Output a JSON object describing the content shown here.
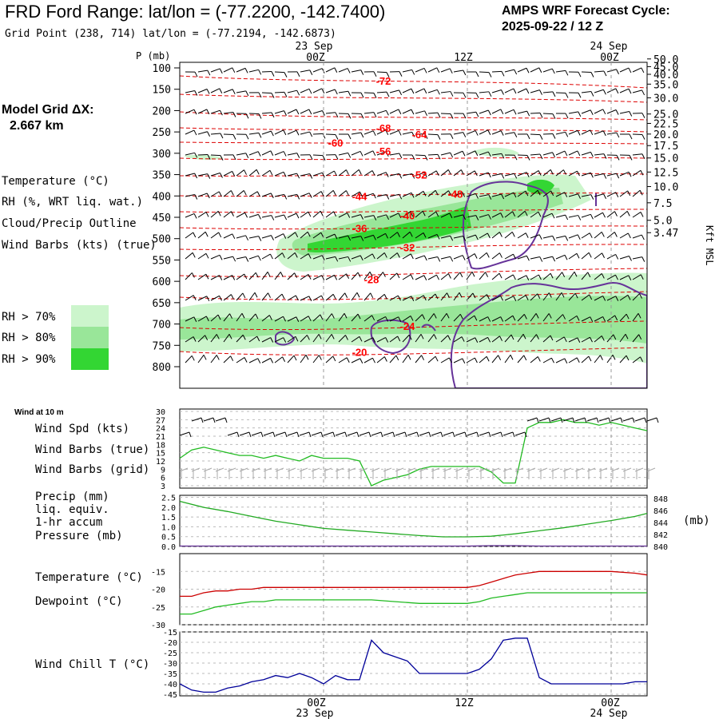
{
  "header": {
    "title": "FRD Ford Range:  lat/lon = (-77.2200, -142.7400)",
    "subtitle": "Grid Point (238, 714) lat/lon = (-77.2194, -142.6873)",
    "cycle_line1": "AMPS WRF Forecast Cycle:",
    "cycle_line2": "2025-09-22 / 12  Z",
    "model_grid_label": "Model Grid ΔX:",
    "model_grid_value": "2.667 km"
  },
  "time_axis": {
    "top_dates": [
      "23 Sep",
      "24 Sep"
    ],
    "labels": [
      "00Z",
      "12Z",
      "00Z"
    ],
    "bottom_dates": [
      "23 Sep",
      "24 Sep"
    ]
  },
  "colors": {
    "temperature": "#ff0000",
    "rh": "#00aa00",
    "cloud": "#663399",
    "wind": "#000000",
    "wind_grid": "#aaaaaa",
    "precip": "#663399",
    "pressure": "#22aa22",
    "temp_line": "#cc0000",
    "dewpoint": "#22bb22",
    "windchill": "#000099",
    "rh70": "#ccf5cc",
    "rh80": "#99e699",
    "rh90": "#33d633"
  },
  "upper_panel": {
    "p_axis_title": "P (mb)",
    "right_axis_title": "Kft MSL",
    "legend": {
      "temperature": "Temperature (°C)",
      "rh": "RH (%, WRT liq. wat.)",
      "cloud": "Cloud/Precip Outline",
      "wind": "Wind Barbs (kts) (true)",
      "rh70": "RH > 70%",
      "rh80": "RH > 80%",
      "rh90": "RH > 90%"
    }
  },
  "lower_panels": {
    "wind_title": "Wind at 10 m",
    "wind_spd": "Wind Spd (kts)",
    "wind_barbs_true": "Wind Barbs (true)",
    "wind_barbs_grid": "Wind Barbs (grid)",
    "precip_l1": "Precip (mm)",
    "precip_l2": "liq. equiv.",
    "precip_l3": "1-hr accum",
    "pressure": "Pressure (mb)",
    "pressure_unit": "(mb)",
    "temperature": "Temperature (°C)",
    "dewpoint": "Dewpoint (°C)",
    "windchill": "Wind Chill T (°C)"
  },
  "chart_data": [
    {
      "type": "heatmap",
      "name": "upper-air-time-height",
      "y_left_label": "P (mb)",
      "y_left_ticks": [
        100,
        150,
        200,
        250,
        300,
        350,
        400,
        450,
        500,
        550,
        600,
        650,
        700,
        750,
        800
      ],
      "y_right_label": "Kft MSL",
      "y_right_ticks": [
        "50.0",
        "45.0",
        "40.0",
        "35.0",
        "30.0",
        "25.0",
        "22.5",
        "20.0",
        "17.5",
        "15.0",
        "12.5",
        "10.0",
        "7.5",
        "5.0",
        "3.47"
      ],
      "y_right_pressures": [
        79,
        97,
        115,
        138,
        170,
        208,
        230,
        255,
        282,
        311,
        344,
        378,
        416,
        457,
        486
      ],
      "temperature_labels": [
        {
          "text": "-72",
          "hour": 5,
          "p": 130
        },
        {
          "text": "-68",
          "hour": 5,
          "p": 240
        },
        {
          "text": "-64",
          "hour": 8,
          "p": 255
        },
        {
          "text": "-60",
          "hour": 1,
          "p": 275
        },
        {
          "text": "-56",
          "hour": 5,
          "p": 295
        },
        {
          "text": "-52",
          "hour": 8,
          "p": 350
        },
        {
          "text": "-48",
          "hour": 11,
          "p": 395
        },
        {
          "text": "-44",
          "hour": 3,
          "p": 400
        },
        {
          "text": "-40",
          "hour": 7,
          "p": 445
        },
        {
          "text": "-36",
          "hour": 3,
          "p": 475
        },
        {
          "text": "-32",
          "hour": 7,
          "p": 520
        },
        {
          "text": "-28",
          "hour": 4,
          "p": 595
        },
        {
          "text": "-24",
          "hour": 7,
          "p": 705
        },
        {
          "text": "-20",
          "hour": 3,
          "p": 765
        }
      ]
    },
    {
      "type": "line",
      "name": "wind-10m",
      "x_hours": [
        -12,
        -11,
        -10,
        -9,
        -8,
        -7,
        -6,
        -5,
        -4,
        -3,
        -2,
        -1,
        0,
        1,
        2,
        3,
        4,
        5,
        6,
        7,
        8,
        9,
        10,
        11,
        12,
        13,
        14,
        15,
        16,
        17,
        18,
        19,
        20,
        21,
        22,
        23,
        24,
        25,
        26,
        27
      ],
      "series": [
        {
          "name": "Wind Spd (kts)",
          "values": [
            13,
            16,
            17,
            16,
            15,
            14,
            14,
            13,
            14,
            13,
            12,
            14,
            13,
            13,
            13,
            12,
            3,
            5,
            6,
            7,
            9,
            10,
            10,
            10,
            10,
            10,
            8,
            4,
            4,
            24,
            26,
            26,
            27,
            26,
            26,
            25,
            26,
            25,
            24,
            23
          ]
        }
      ],
      "ylim": [
        3,
        30
      ],
      "y_ticks": [
        3,
        6,
        9,
        12,
        15,
        18,
        21,
        24,
        27,
        30
      ]
    },
    {
      "type": "line",
      "name": "precip-pressure",
      "x_hours": [
        -12,
        -10,
        -8,
        -6,
        -4,
        -2,
        0,
        2,
        4,
        6,
        8,
        10,
        12,
        14,
        16,
        18,
        20,
        22,
        24,
        26,
        27
      ],
      "series": [
        {
          "name": "Pressure (mb)",
          "values": [
            847.5,
            846.5,
            845.8,
            845.0,
            844.2,
            843.6,
            843.0,
            842.7,
            842.4,
            842.1,
            841.8,
            841.6,
            841.6,
            841.7,
            842.1,
            842.6,
            843.1,
            843.7,
            844.3,
            845.0,
            845.5
          ]
        },
        {
          "name": "Precip (mm)",
          "values": [
            0,
            0,
            0,
            0,
            0,
            0,
            0,
            0,
            0,
            0,
            0,
            0,
            0,
            0.02,
            0.02,
            0,
            0,
            0,
            0,
            0,
            0
          ]
        }
      ],
      "y_left_ticks": [
        0.0,
        0.5,
        1.0,
        1.5,
        2.0,
        2.5
      ],
      "y_right_ticks": [
        840,
        842,
        844,
        846,
        848
      ]
    },
    {
      "type": "line",
      "name": "temperature-dewpoint",
      "x_hours": [
        -12,
        -11,
        -10,
        -9,
        -8,
        -7,
        -6,
        -5,
        -4,
        -3,
        -2,
        -1,
        0,
        2,
        4,
        6,
        8,
        10,
        12,
        13,
        14,
        15,
        16,
        17,
        18,
        20,
        22,
        24,
        26,
        27
      ],
      "series": [
        {
          "name": "Temperature (°C)",
          "values": [
            -22,
            -22,
            -21,
            -20.5,
            -20.5,
            -20,
            -20,
            -19.5,
            -19.5,
            -19.5,
            -19.5,
            -19.5,
            -19.5,
            -19.5,
            -19.5,
            -19.5,
            -19.5,
            -19.5,
            -19.5,
            -19,
            -18,
            -17,
            -16,
            -15.5,
            -15,
            -15,
            -15,
            -15,
            -15.5,
            -16
          ]
        },
        {
          "name": "Dewpoint (°C)",
          "values": [
            -27,
            -27,
            -26,
            -25,
            -24.5,
            -24,
            -23.5,
            -23.5,
            -23,
            -23,
            -23,
            -23,
            -23,
            -23,
            -23,
            -23.5,
            -24,
            -24,
            -24,
            -23.5,
            -22.5,
            -22,
            -21.5,
            -21,
            -21,
            -21,
            -21,
            -21,
            -21,
            -21
          ]
        }
      ],
      "y_ticks": [
        -30,
        -25,
        -20,
        -15
      ],
      "ylim": [
        -30,
        -10
      ]
    },
    {
      "type": "line",
      "name": "wind-chill",
      "x_hours": [
        -12,
        -11,
        -10,
        -9,
        -8,
        -7,
        -6,
        -5,
        -4,
        -3,
        -2,
        -1,
        0,
        1,
        2,
        3,
        4,
        5,
        6,
        7,
        8,
        9,
        10,
        11,
        12,
        13,
        14,
        15,
        16,
        17,
        18,
        19,
        20,
        21,
        22,
        23,
        24,
        25,
        26,
        27
      ],
      "series": [
        {
          "name": "Wind Chill T (°C)",
          "values": [
            -40,
            -43,
            -44,
            -44,
            -42,
            -41,
            -39,
            -38,
            -36,
            -37,
            -35,
            -37,
            -40,
            -36,
            -38,
            -38,
            -19,
            -25,
            -27,
            -29,
            -35,
            -35,
            -35,
            -35,
            -35,
            -33,
            -28,
            -19,
            -18,
            -18,
            -37,
            -40,
            -40,
            -40,
            -40,
            -40,
            -40,
            -40,
            -39,
            -39
          ]
        }
      ],
      "y_ticks": [
        -45,
        -40,
        -35,
        -30,
        -25,
        -20,
        -15
      ],
      "ylim": [
        -45,
        -15
      ]
    }
  ]
}
